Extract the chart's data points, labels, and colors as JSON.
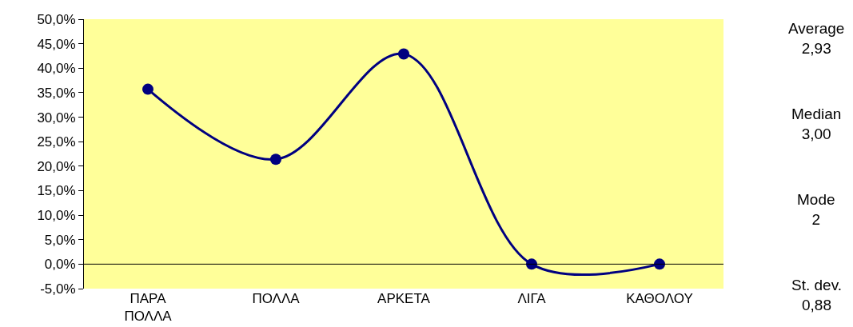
{
  "chart_data": {
    "type": "line",
    "categories": [
      "ΠΑΡΑ\nΠΟΛΛΑ",
      "ΠΟΛΛΑ",
      "ΑΡΚΕΤΑ",
      "ΛΙΓΑ",
      "ΚΑΘΟΛΟΥ"
    ],
    "series": [
      {
        "color": "#000080",
        "values": [
          35.7,
          21.4,
          42.9,
          0,
          0
        ]
      }
    ],
    "ylim": [
      -5,
      50
    ],
    "yticks": [
      {
        "value": -5,
        "label": "-5,0%"
      },
      {
        "value": 0,
        "label": "0,0%"
      },
      {
        "value": 5,
        "label": "5,0%"
      },
      {
        "value": 10,
        "label": "10,0%"
      },
      {
        "value": 15,
        "label": "15,0%"
      },
      {
        "value": 20,
        "label": "20,0%"
      },
      {
        "value": 25,
        "label": "25,0%"
      },
      {
        "value": 30,
        "label": "30,0%"
      },
      {
        "value": 35,
        "label": "35,0%"
      },
      {
        "value": 40,
        "label": "40,0%"
      },
      {
        "value": 45,
        "label": "45,0%"
      },
      {
        "value": 50,
        "label": "50,0%"
      }
    ],
    "annotations": [
      "Average\n2,93",
      "Median\n3,00",
      "Mode\n2",
      "St. dev.\n0,88"
    ],
    "ref_lines": [
      {
        "axis": "y",
        "value": 0,
        "color": "#000000"
      }
    ],
    "grid": false,
    "legend": false,
    "marker": "circle",
    "line_style": "solid"
  }
}
